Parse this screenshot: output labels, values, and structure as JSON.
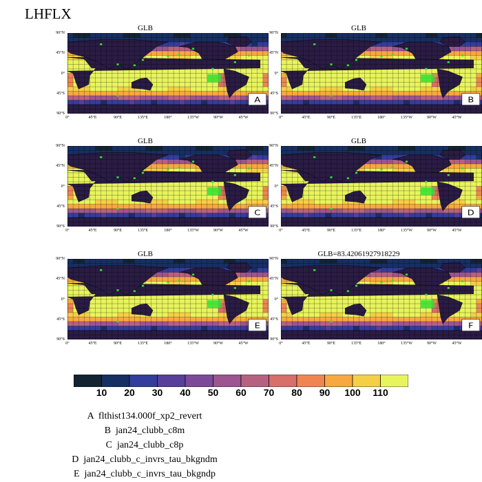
{
  "main_title": "LHFLX",
  "chart_data": {
    "type": "heatmap",
    "variable": "LHFLX",
    "panels": [
      {
        "title": "GLB",
        "label": "A"
      },
      {
        "title": "GLB",
        "label": "B"
      },
      {
        "title": "GLB",
        "label": "C"
      },
      {
        "title": "GLB",
        "label": "D"
      },
      {
        "title": "GLB",
        "label": "E"
      },
      {
        "title": "GLB=83.42061927918229",
        "label": "F"
      }
    ],
    "lat_ticks": [
      "90°N",
      "45°N",
      "0°",
      "45°S",
      "90°S"
    ],
    "lon_ticks": [
      "0°",
      "45°E",
      "90°E",
      "135°E",
      "180°",
      "135°W",
      "90°W",
      "45°W"
    ],
    "colorbar": {
      "levels": [
        10,
        20,
        30,
        40,
        50,
        60,
        70,
        80,
        90,
        100,
        110
      ],
      "colors": [
        "#142332",
        "#172f63",
        "#343d9c",
        "#573f9b",
        "#7d4a99",
        "#9c5590",
        "#b76180",
        "#d86f6a",
        "#ef8652",
        "#f7a840",
        "#f5cf45",
        "#e8f45c"
      ]
    }
  },
  "legend": {
    "entries": [
      {
        "letter": "A",
        "name": "flthist134.000f_xp2_revert"
      },
      {
        "letter": "B",
        "name": "jan24_clubb_c8m"
      },
      {
        "letter": "C",
        "name": "jan24_clubb_c8p"
      },
      {
        "letter": "D",
        "name": "jan24_clubb_c_invrs_tau_bkgndm"
      },
      {
        "letter": "E",
        "name": "jan24_clubb_c_invrs_tau_bkgndp"
      }
    ]
  }
}
